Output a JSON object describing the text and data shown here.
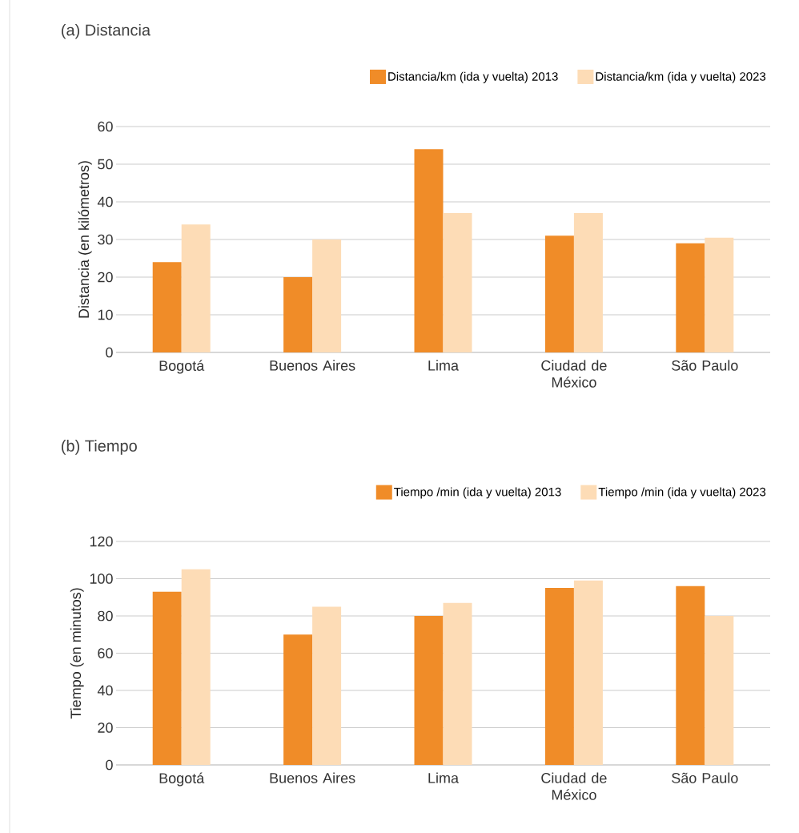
{
  "chart_data": [
    {
      "type": "bar",
      "title": "(a) Distancia",
      "ylabel": "Distancia (en kilómetros)",
      "categories": [
        "Bogotá",
        "Buenos Aires",
        "Lima",
        "Ciudad de México",
        "São Paulo"
      ],
      "series": [
        {
          "name": "Distancia/km (ida y vuelta) 2013",
          "color": "#f08c28",
          "values": [
            24,
            20,
            54,
            31,
            29
          ]
        },
        {
          "name": "Distancia/km (ida y vuelta) 2023",
          "color": "#fddcb6",
          "values": [
            34,
            30,
            37,
            37,
            30.5
          ]
        }
      ],
      "ylim": [
        0,
        60
      ],
      "yticks": [
        0,
        10,
        20,
        30,
        40,
        50,
        60
      ],
      "grid": "y",
      "legend": "top right"
    },
    {
      "type": "bar",
      "title": "(b) Tiempo",
      "ylabel": "Tiempo (en minutos)",
      "categories": [
        "Bogotá",
        "Buenos Aires",
        "Lima",
        "Ciudad de México",
        "São Paulo"
      ],
      "series": [
        {
          "name": "Tiempo /min (ida y vuelta) 2013",
          "color": "#f08c28",
          "values": [
            93,
            70,
            80,
            95,
            96
          ]
        },
        {
          "name": "Tiempo /min (ida y vuelta) 2023",
          "color": "#fddcb6",
          "values": [
            105,
            85,
            87,
            99,
            80
          ]
        }
      ],
      "ylim": [
        0,
        120
      ],
      "yticks": [
        0,
        20,
        40,
        60,
        80,
        100,
        120
      ],
      "grid": "y",
      "legend": "top right"
    }
  ]
}
